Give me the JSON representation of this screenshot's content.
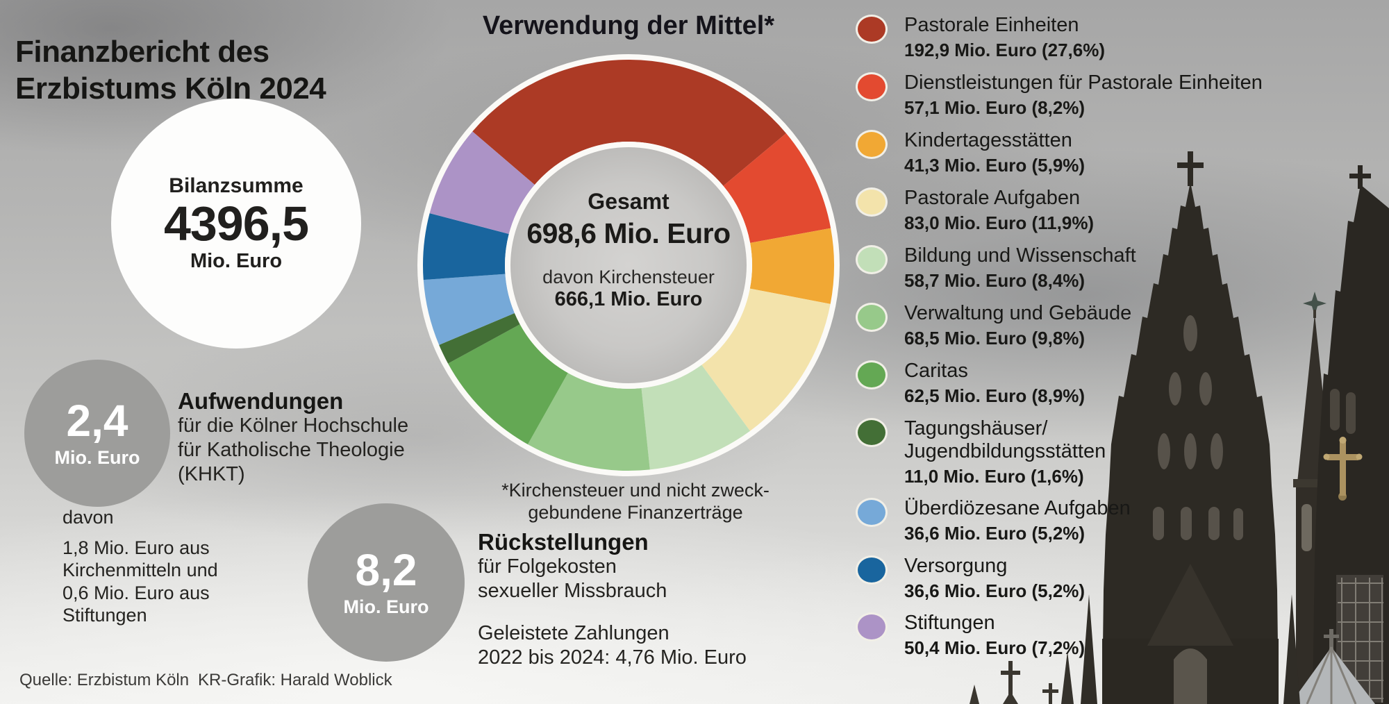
{
  "header": {
    "title": "Finanzbericht des\nErzbistums Köln 2024"
  },
  "bilanzsumme": {
    "label": "Bilanzsumme",
    "value": "4396,5",
    "unit": "Mio. Euro"
  },
  "chart_data": {
    "type": "donut",
    "title": "Verwendung der Mittel*",
    "legend_position": "right",
    "start_angle_deg": -49.4,
    "unit": "Mio. Euro",
    "center": {
      "label": "Gesamt",
      "total": "698,6 Mio. Euro",
      "sub_label": "davon Kirchensteuer",
      "sub_value": "666,1 Mio. Euro"
    },
    "footnote": "*Kirchensteuer und nicht zweck-\ngebundene Finanzerträge",
    "segments": [
      {
        "label": "Pastorale Einheiten",
        "value": 192.9,
        "percent": 27.6,
        "value_text": "192,9 Mio. Euro (27,6%)",
        "color": "#ac3a25"
      },
      {
        "label": "Dienstleistungen für Pastorale Einheiten",
        "value": 57.1,
        "percent": 8.2,
        "value_text": "57,1 Mio. Euro (8,2%)",
        "color": "#e34a30"
      },
      {
        "label": "Kindertagesstätten",
        "value": 41.3,
        "percent": 5.9,
        "value_text": "41,3 Mio. Euro (5,9%)",
        "color": "#f1a834"
      },
      {
        "label": "Pastorale Aufgaben",
        "value": 83.0,
        "percent": 11.9,
        "value_text": "83,0 Mio. Euro (11,9%)",
        "color": "#f3e3ab"
      },
      {
        "label": "Bildung und Wissenschaft",
        "value": 58.7,
        "percent": 8.4,
        "value_text": "58,7 Mio. Euro (8,4%)",
        "color": "#c2dfb8"
      },
      {
        "label": "Verwaltung und Gebäude",
        "value": 68.5,
        "percent": 9.8,
        "value_text": "68,5 Mio. Euro (9,8%)",
        "color": "#97c98a"
      },
      {
        "label": "Caritas",
        "value": 62.5,
        "percent": 8.9,
        "value_text": "62,5 Mio. Euro (8,9%)",
        "color": "#64a854"
      },
      {
        "label": "Tagungshäuser/\nJugendbildungsstätten",
        "value": 11.0,
        "percent": 1.6,
        "value_text": "11,0 Mio. Euro (1,6%)",
        "color": "#436f36"
      },
      {
        "label": "Überdiözesane Aufgaben",
        "value": 36.6,
        "percent": 5.2,
        "value_text": "36,6 Mio. Euro (5,2%)",
        "color": "#76a9d8"
      },
      {
        "label": "Versorgung",
        "value": 36.6,
        "percent": 5.2,
        "value_text": "36,6 Mio. Euro (5,2%)",
        "color": "#19659e"
      },
      {
        "label": "Stiftungen",
        "value": 50.4,
        "percent": 7.2,
        "value_text": "50,4 Mio. Euro (7,2%)",
        "color": "#ac93c6"
      }
    ]
  },
  "aufwendungen": {
    "circle_value": "2,4",
    "circle_unit": "Mio. Euro",
    "heading": "Aufwendungen",
    "text": "für die Kölner Hochschule\nfür Katholische Theologie\n(KHKT)",
    "davon_label": "davon",
    "davon_text": "1,8 Mio. Euro aus\nKirchenmitteln und\n0,6 Mio. Euro aus\nStiftungen"
  },
  "rueckstellungen": {
    "circle_value": "8,2",
    "circle_unit": "Mio. Euro",
    "heading": "Rückstellungen",
    "text": "für Folgekosten\nsexueller Missbrauch",
    "payments": "Geleistete Zahlungen\n2022 bis 2024: 4,76 Mio. Euro"
  },
  "footer": {
    "source": "Quelle: Erzbistum Köln",
    "credit": "KR-Grafik: Harald Woblick"
  }
}
